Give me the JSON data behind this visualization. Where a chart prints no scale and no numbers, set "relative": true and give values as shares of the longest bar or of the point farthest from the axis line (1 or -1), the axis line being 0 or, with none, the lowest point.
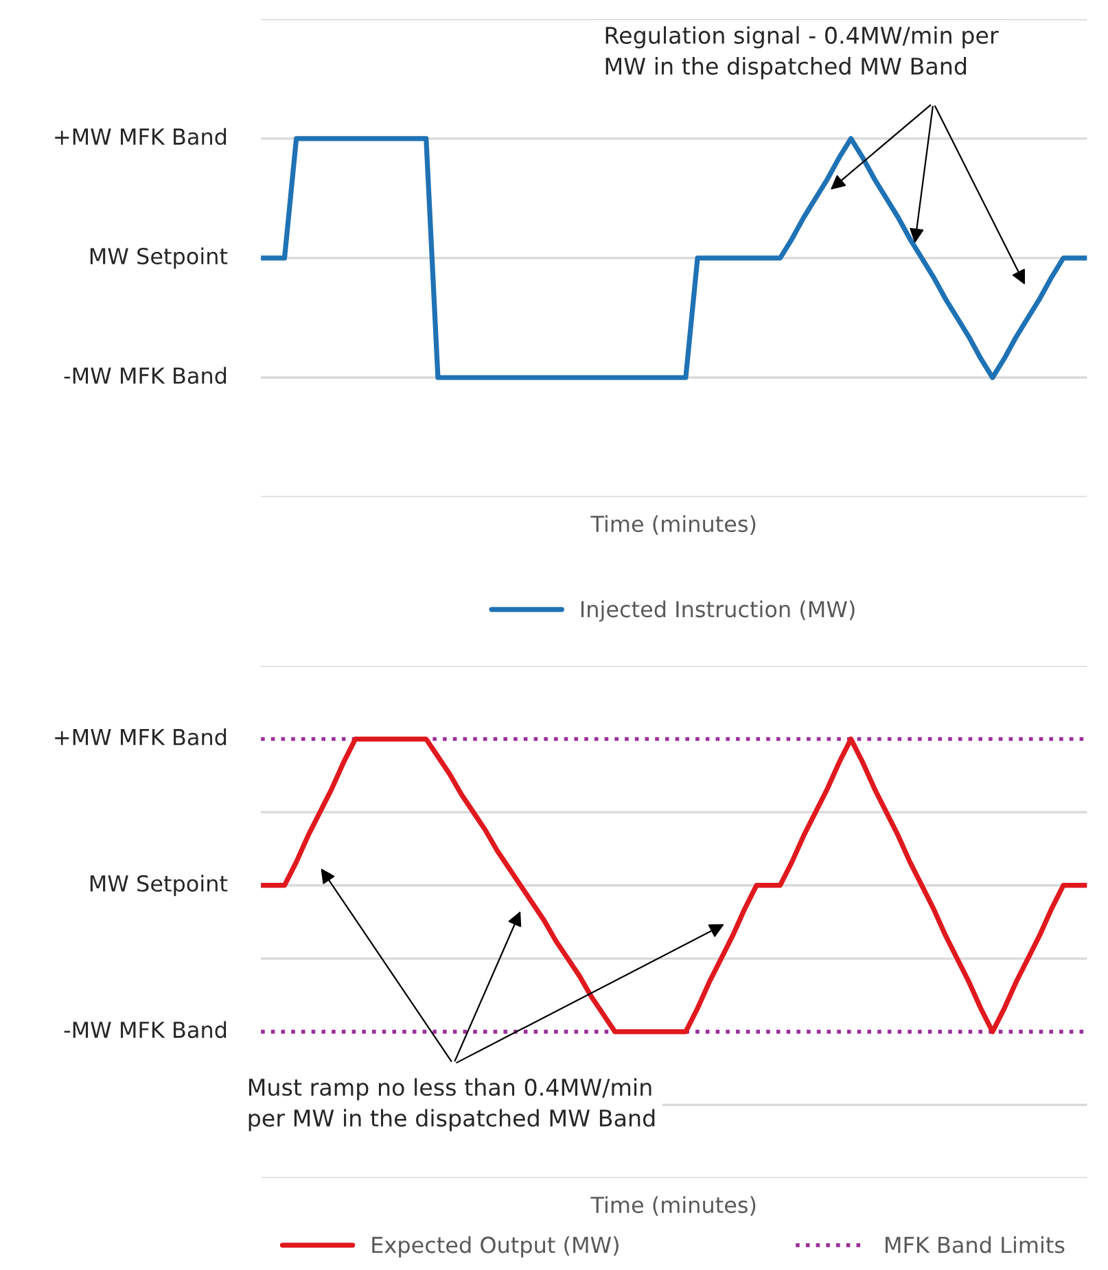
{
  "chart_data": [
    {
      "type": "line",
      "xlabel": "Time (minutes)",
      "relative": true,
      "categories": [
        null,
        null,
        null,
        null,
        null,
        null,
        null,
        null,
        null,
        null,
        null,
        null,
        null,
        null,
        null,
        null,
        null,
        null,
        null,
        null,
        null,
        null,
        null,
        null,
        null,
        null,
        null,
        null,
        null,
        null,
        null,
        null,
        null,
        null,
        null,
        null,
        null,
        null,
        null,
        null,
        null,
        null,
        null,
        null,
        null,
        null,
        null,
        null,
        null,
        null,
        null,
        null,
        null,
        null,
        null,
        null,
        null,
        null,
        null,
        null,
        null,
        null,
        null,
        null,
        null,
        null,
        null,
        null,
        null,
        null,
        null
      ],
      "grid": "y",
      "legend": "bottom",
      "line_style": "solid",
      "series": [
        {
          "name": "Injected Instruction (MW)",
          "color": "#1f72b4",
          "values": [
            0.5,
            0.5,
            0.5,
            1,
            1,
            1,
            1,
            1,
            1,
            1,
            1,
            1,
            1,
            1,
            1,
            0,
            0,
            0,
            0,
            0,
            0,
            0,
            0,
            0,
            0,
            0,
            0,
            0,
            0,
            0,
            0,
            0,
            0,
            0,
            0,
            0,
            0,
            0.5,
            0.5,
            0.5,
            0.5,
            0.5,
            0.5,
            0.5,
            0.5,
            0.58,
            0.67,
            0.75,
            0.83,
            0.92,
            1,
            0.92,
            0.83,
            0.75,
            0.67,
            0.58,
            0.5,
            0.42,
            0.33,
            0.25,
            0.17,
            0.08,
            0,
            0.08,
            0.17,
            0.25,
            0.33,
            0.42,
            0.5,
            0.5,
            0.5
          ]
        }
      ],
      "ref_lines": [
        {
          "axis": "y",
          "value": 0.5,
          "color": "#d9d9d9",
          "line_style": "solid"
        }
      ],
      "annotations": [
        "+MW MFK Band",
        "MW Setpoint",
        "-MW MFK Band",
        "Regulation signal - 0.4MW/min per\nMW in the dispatched MW Band"
      ]
    },
    {
      "type": "line",
      "xlabel": "Time (minutes)",
      "relative": true,
      "categories": [
        null,
        null,
        null,
        null,
        null,
        null,
        null,
        null,
        null,
        null,
        null,
        null,
        null,
        null,
        null,
        null,
        null,
        null,
        null,
        null,
        null,
        null,
        null,
        null,
        null,
        null,
        null,
        null,
        null,
        null,
        null,
        null,
        null,
        null,
        null,
        null,
        null,
        null,
        null,
        null,
        null,
        null,
        null,
        null,
        null,
        null,
        null,
        null,
        null,
        null,
        null,
        null,
        null,
        null,
        null,
        null,
        null,
        null,
        null,
        null,
        null,
        null,
        null,
        null,
        null,
        null,
        null,
        null,
        null,
        null,
        null
      ],
      "grid": "y",
      "legend": "bottom",
      "line_style": "solid",
      "series": [
        {
          "name": "Expected Output (MW)",
          "color": "#e0191e",
          "values": [
            0.5,
            0.5,
            0.5,
            0.58,
            0.67,
            0.75,
            0.83,
            0.92,
            1,
            1,
            1,
            1,
            1,
            1,
            1,
            0.94,
            0.88,
            0.81,
            0.75,
            0.69,
            0.62,
            0.56,
            0.5,
            0.44,
            0.38,
            0.31,
            0.25,
            0.19,
            0.12,
            0.06,
            0,
            0,
            0,
            0,
            0,
            0,
            0,
            0.08,
            0.17,
            0.25,
            0.33,
            0.42,
            0.5,
            0.5,
            0.5,
            0.58,
            0.67,
            0.75,
            0.83,
            0.92,
            1,
            0.92,
            0.83,
            0.75,
            0.67,
            0.58,
            0.5,
            0.42,
            0.33,
            0.25,
            0.17,
            0.08,
            0,
            0.08,
            0.17,
            0.25,
            0.33,
            0.42,
            0.5,
            0.5,
            0.5
          ]
        }
      ],
      "ref_lines": [
        {
          "axis": "y",
          "value": 1,
          "label": "MFK Band Limits",
          "color": "#9b2f9b",
          "line_style": "dotted"
        },
        {
          "axis": "y",
          "value": 0,
          "color": "#9b2f9b",
          "line_style": "dotted"
        },
        {
          "axis": "y",
          "value": 0.5,
          "color": "#d9d9d9",
          "line_style": "solid"
        },
        {
          "axis": "y",
          "value": 0.25,
          "color": "#d9d9d9",
          "line_style": "solid"
        },
        {
          "axis": "y",
          "value": 0.75,
          "color": "#d9d9d9",
          "line_style": "solid"
        }
      ],
      "annotations": [
        "+MW MFK Band",
        "MW Setpoint",
        "-MW MFK Band",
        "Must ramp no less than 0.4MW/min\nper MW in the dispatched MW Band"
      ]
    }
  ]
}
